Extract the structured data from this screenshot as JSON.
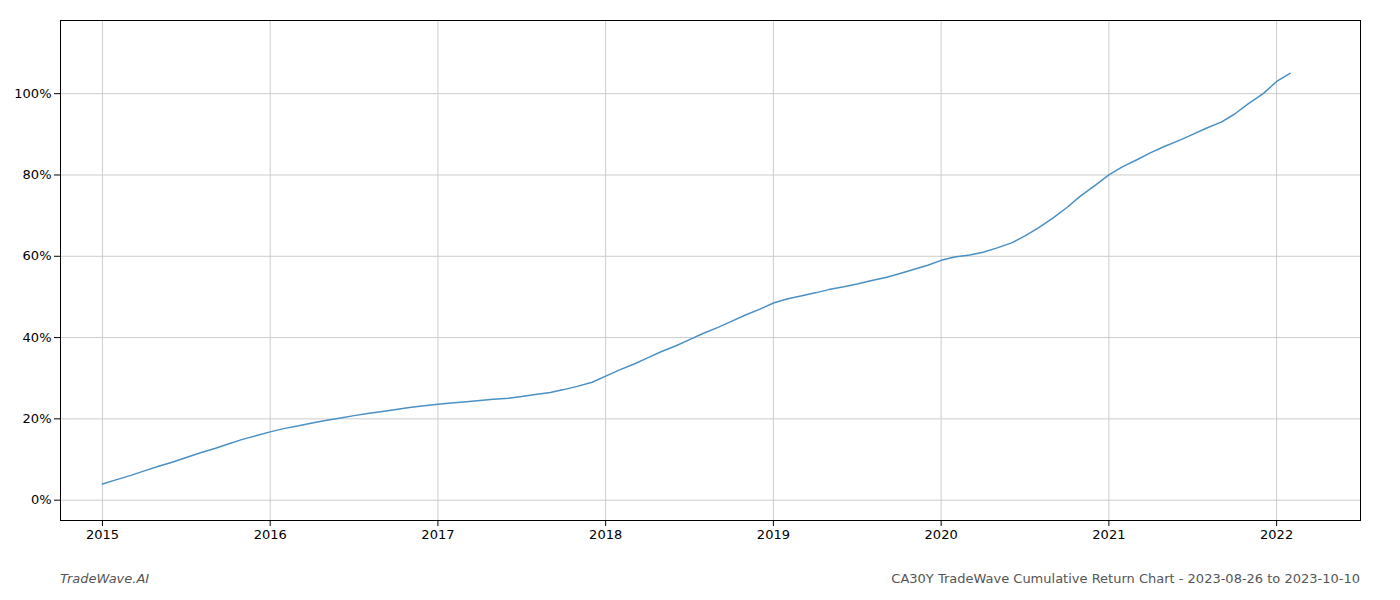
{
  "chart_data": {
    "type": "line",
    "title": "CA30Y TradeWave Cumulative Return Chart - 2023-08-26 to 2023-10-10",
    "annotations": [
      "TradeWave.AI"
    ],
    "color": "#4a90c4",
    "x": [
      2015.0,
      2015.08,
      2015.17,
      2015.25,
      2015.33,
      2015.42,
      2015.5,
      2015.58,
      2015.67,
      2015.75,
      2015.83,
      2015.92,
      2016.0,
      2016.08,
      2016.17,
      2016.25,
      2016.33,
      2016.42,
      2016.5,
      2016.58,
      2016.67,
      2016.75,
      2016.83,
      2016.92,
      2017.0,
      2017.08,
      2017.17,
      2017.25,
      2017.33,
      2017.42,
      2017.5,
      2017.58,
      2017.67,
      2017.75,
      2017.83,
      2017.92,
      2018.0,
      2018.08,
      2018.17,
      2018.25,
      2018.33,
      2018.42,
      2018.5,
      2018.58,
      2018.67,
      2018.75,
      2018.83,
      2018.92,
      2019.0,
      2019.08,
      2019.17,
      2019.25,
      2019.33,
      2019.42,
      2019.5,
      2019.58,
      2019.67,
      2019.75,
      2019.83,
      2019.92,
      2020.0,
      2020.08,
      2020.17,
      2020.25,
      2020.33,
      2020.42,
      2020.5,
      2020.58,
      2020.67,
      2020.75,
      2020.83,
      2020.92,
      2021.0,
      2021.08,
      2021.17,
      2021.25,
      2021.33,
      2021.42,
      2021.5,
      2021.58,
      2021.67,
      2021.75,
      2021.83,
      2021.92,
      2022.0,
      2022.08
    ],
    "values": [
      4.0,
      5.0,
      6.1,
      7.2,
      8.3,
      9.4,
      10.5,
      11.6,
      12.7,
      13.8,
      14.9,
      15.9,
      16.8,
      17.6,
      18.3,
      19.0,
      19.6,
      20.2,
      20.8,
      21.3,
      21.8,
      22.3,
      22.8,
      23.2,
      23.6,
      23.9,
      24.2,
      24.5,
      24.8,
      25.1,
      25.5,
      26.0,
      26.5,
      27.2,
      28.0,
      29.0,
      30.5,
      32.0,
      33.5,
      35.0,
      36.5,
      38.0,
      39.5,
      41.0,
      42.5,
      44.0,
      45.5,
      47.0,
      48.5,
      49.5,
      50.3,
      51.0,
      51.8,
      52.5,
      53.2,
      54.0,
      54.8,
      55.7,
      56.7,
      57.8,
      59.0,
      59.8,
      60.3,
      61.0,
      62.0,
      63.3,
      65.0,
      67.0,
      69.5,
      72.0,
      74.8,
      77.5,
      80.0,
      82.0,
      83.8,
      85.5,
      87.0,
      88.5,
      90.0,
      91.5,
      93.0,
      95.0,
      97.5,
      100.0,
      103.0,
      105.0
    ],
    "xlim": [
      2014.75,
      2022.5
    ],
    "ylim": [
      -5,
      118
    ],
    "xticks": [
      2015,
      2016,
      2017,
      2018,
      2019,
      2020,
      2021,
      2022
    ],
    "yticks": [
      {
        "value": 0,
        "label": "0%"
      },
      {
        "value": 20,
        "label": "20%"
      },
      {
        "value": 40,
        "label": "40%"
      },
      {
        "value": 60,
        "label": "60%"
      },
      {
        "value": 80,
        "label": "80%"
      },
      {
        "value": 100,
        "label": "100%"
      }
    ],
    "grid": true
  }
}
